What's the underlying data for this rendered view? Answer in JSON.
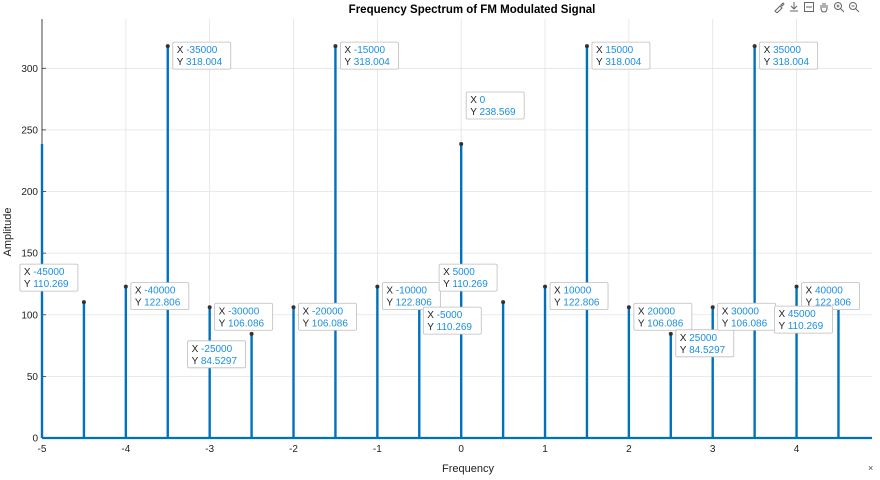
{
  "toolbar": {
    "icons": [
      "brush-icon",
      "export-icon",
      "datatip-icon",
      "pan-icon",
      "zoom-in-icon",
      "zoom-out-icon"
    ]
  },
  "chart_data": {
    "type": "stem",
    "title": "Frequency Spectrum of FM Modulated Signal",
    "xlabel": "Frequency",
    "ylabel": "Amplitude",
    "xlim": [
      -5,
      4.9
    ],
    "ylim": [
      0,
      340
    ],
    "grid": true,
    "xticks": [
      "-5",
      "-4",
      "-3",
      "-2",
      "-1",
      "0",
      "1",
      "2",
      "3",
      "4"
    ],
    "yticks": [
      "0",
      "50",
      "100",
      "150",
      "200",
      "250",
      "300"
    ],
    "x_exponent_label": "×",
    "color": "#0072BD",
    "x": [
      -5,
      -4.5,
      -4,
      -3.5,
      -3,
      -2.5,
      -2,
      -1.5,
      -1,
      -0.5,
      0,
      0.5,
      1,
      1.5,
      2,
      2.5,
      3,
      3.5,
      4,
      4.5
    ],
    "values": [
      238.569,
      110.269,
      122.806,
      318.004,
      106.086,
      84.5297,
      106.086,
      318.004,
      122.806,
      110.269,
      238.569,
      110.269,
      122.806,
      318.004,
      106.086,
      84.5297,
      106.086,
      318.004,
      122.806,
      110.269
    ],
    "datatips": [
      {
        "x": -4.5,
        "y": 110.269,
        "xtext": "-45000",
        "ytext": "110.269",
        "side": "left"
      },
      {
        "x": -4,
        "y": 122.806,
        "xtext": "-40000",
        "ytext": "122.806",
        "side": "right"
      },
      {
        "x": -3.5,
        "y": 318.004,
        "xtext": "-35000",
        "ytext": "318.004",
        "side": "right"
      },
      {
        "x": -3,
        "y": 106.086,
        "xtext": "-30000",
        "ytext": "106.086",
        "side": "right"
      },
      {
        "x": -2.5,
        "y": 84.5297,
        "xtext": "-25000",
        "ytext": "84.5297",
        "side": "left"
      },
      {
        "x": -2,
        "y": 106.086,
        "xtext": "-20000",
        "ytext": "106.086",
        "side": "right"
      },
      {
        "x": -1.5,
        "y": 318.004,
        "xtext": "-15000",
        "ytext": "318.004",
        "side": "right"
      },
      {
        "x": -1,
        "y": 122.806,
        "xtext": "-10000",
        "ytext": "122.806",
        "side": "right"
      },
      {
        "x": -0.5,
        "y": 110.269,
        "xtext": "-5000",
        "ytext": "110.269",
        "side": "right-below"
      },
      {
        "x": 0,
        "y": 238.569,
        "xtext": "0",
        "ytext": "238.569",
        "side": "right"
      },
      {
        "x": 0.5,
        "y": 110.269,
        "xtext": "5000",
        "ytext": "110.269",
        "side": "left"
      },
      {
        "x": 1,
        "y": 122.806,
        "xtext": "10000",
        "ytext": "122.806",
        "side": "right"
      },
      {
        "x": 1.5,
        "y": 318.004,
        "xtext": "15000",
        "ytext": "318.004",
        "side": "right"
      },
      {
        "x": 2,
        "y": 106.086,
        "xtext": "20000",
        "ytext": "106.086",
        "side": "right"
      },
      {
        "x": 2.5,
        "y": 84.5297,
        "xtext": "25000",
        "ytext": "84.5297",
        "side": "right"
      },
      {
        "x": 3,
        "y": 106.086,
        "xtext": "30000",
        "ytext": "106.086",
        "side": "right"
      },
      {
        "x": 3.5,
        "y": 318.004,
        "xtext": "35000",
        "ytext": "318.004",
        "side": "right"
      },
      {
        "x": 4,
        "y": 122.806,
        "xtext": "40000",
        "ytext": "122.806",
        "side": "right"
      },
      {
        "x": 4.5,
        "y": 110.269,
        "xtext": "45000",
        "ytext": "110.269",
        "side": "left-below"
      }
    ]
  }
}
